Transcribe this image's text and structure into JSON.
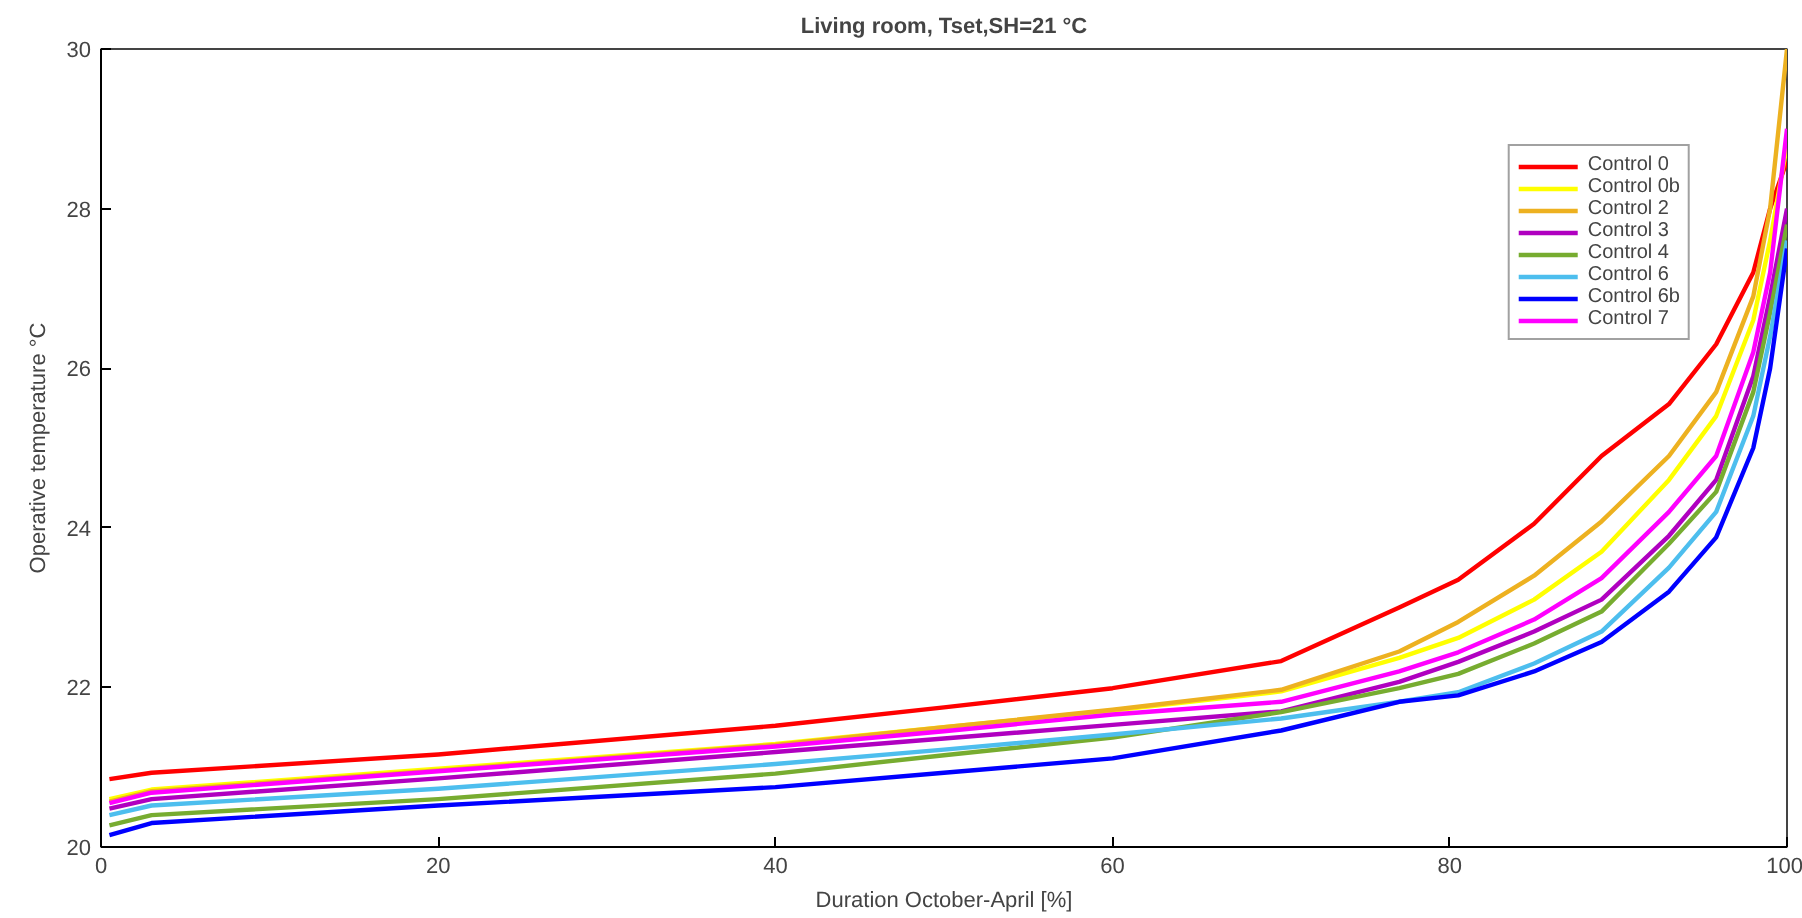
{
  "chart_data": {
    "type": "line",
    "title": "Living room, Tset,SH=21 °C",
    "xlabel": "Duration October-April [%]",
    "ylabel": "Operative temperature °C",
    "x": [
      0.5,
      3,
      20,
      40,
      50,
      60,
      70,
      77,
      80.5,
      85,
      89,
      93,
      95.8,
      98,
      99,
      100
    ],
    "xlim": [
      0,
      100
    ],
    "ylim": [
      20,
      30
    ],
    "xticks": [
      0,
      20,
      40,
      60,
      80,
      100
    ],
    "yticks": [
      20,
      22,
      24,
      26,
      28,
      30
    ],
    "grid": false,
    "legend": "top right",
    "marker": "none",
    "line_style": "solid",
    "series": [
      {
        "name": "Control 0",
        "color": "#ff0000",
        "values": [
          20.85,
          20.93,
          21.16,
          21.52,
          21.75,
          21.99,
          22.33,
          23.0,
          23.35,
          24.05,
          24.9,
          25.55,
          26.3,
          27.2,
          28.0,
          28.6
        ]
      },
      {
        "name": "Control 0b",
        "color": "#ffff00",
        "values": [
          20.6,
          20.72,
          20.98,
          21.29,
          21.5,
          21.71,
          21.95,
          22.37,
          22.62,
          23.1,
          23.7,
          24.6,
          25.4,
          26.6,
          27.6,
          28.8
        ]
      },
      {
        "name": "Control 2",
        "color": "#edb120",
        "values": [
          20.57,
          20.7,
          20.96,
          21.28,
          21.5,
          21.72,
          21.97,
          22.45,
          22.82,
          23.4,
          24.08,
          24.9,
          25.7,
          26.9,
          28.0,
          30
        ]
      },
      {
        "name": "Control 3",
        "color": "#b000c0",
        "values": [
          20.48,
          20.6,
          20.86,
          21.19,
          21.36,
          21.53,
          21.7,
          22.07,
          22.32,
          22.7,
          23.1,
          23.9,
          24.6,
          25.9,
          26.9,
          28.0
        ]
      },
      {
        "name": "Control 4",
        "color": "#77ac30",
        "values": [
          20.27,
          20.4,
          20.6,
          20.92,
          21.15,
          21.37,
          21.69,
          21.99,
          22.17,
          22.55,
          22.95,
          23.8,
          24.45,
          25.7,
          26.7,
          27.8
        ]
      },
      {
        "name": "Control 6",
        "color": "#4dbeee",
        "values": [
          20.4,
          20.52,
          20.73,
          21.04,
          21.22,
          21.41,
          21.61,
          21.82,
          21.94,
          22.3,
          22.7,
          23.5,
          24.2,
          25.4,
          26.4,
          27.6
        ]
      },
      {
        "name": "Control 6b",
        "color": "#0000ff",
        "values": [
          20.15,
          20.3,
          20.52,
          20.75,
          20.93,
          21.11,
          21.46,
          21.82,
          21.9,
          22.2,
          22.57,
          23.2,
          23.88,
          25.0,
          26.0,
          27.5
        ]
      },
      {
        "name": "Control 7",
        "color": "#ff00ff",
        "values": [
          20.55,
          20.68,
          20.95,
          21.26,
          21.45,
          21.66,
          21.82,
          22.2,
          22.44,
          22.85,
          23.37,
          24.2,
          24.9,
          26.2,
          27.2,
          29.0
        ]
      }
    ]
  }
}
